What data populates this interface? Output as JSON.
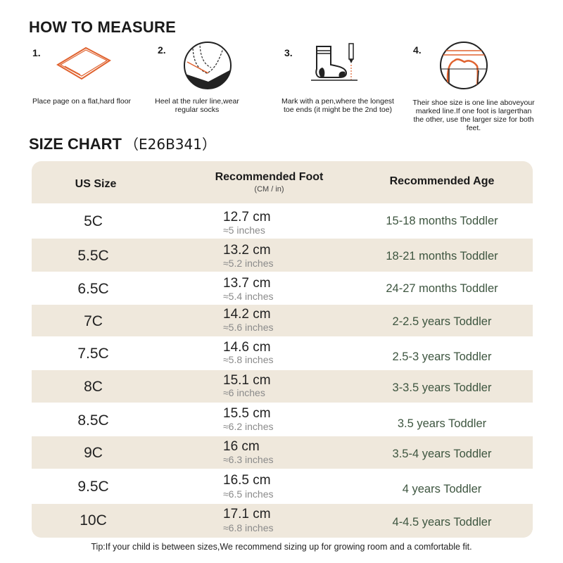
{
  "measure": {
    "title": "HOW TO MEASURE",
    "steps": [
      {
        "num": "1.",
        "text": "Place page on a flat,hard floor"
      },
      {
        "num": "2.",
        "text": "Heel at the ruler line,wear regular socks"
      },
      {
        "num": "3.",
        "text": "Mark with a pen,where the longest toe ends (it might be the 2nd toe)"
      },
      {
        "num": "4.",
        "text": "Their shoe size is one line aboveyour marked line.If one foot is largerthan the other, use the larger size for both feet."
      }
    ]
  },
  "chart": {
    "title": "SIZE CHART",
    "code": "（E26B341）",
    "headers": {
      "size": "US Size",
      "foot": "Recommended Foot",
      "foot_sub": "(CM / in)",
      "age": "Recommended Age"
    },
    "rows": [
      {
        "size": "5C",
        "cm": "12.7 cm",
        "inch": "≈5 inches",
        "age": "15-18 months Toddler"
      },
      {
        "size": "5.5C",
        "cm": "13.2 cm",
        "inch": "≈5.2 inches",
        "age": "18-21 months Toddler"
      },
      {
        "size": "6.5C",
        "cm": "13.7 cm",
        "inch": "≈5.4 inches",
        "age": "24-27 months Toddler"
      },
      {
        "size": "7C",
        "cm": "14.2 cm",
        "inch": "≈5.6 inches",
        "age": "2-2.5 years Toddler"
      },
      {
        "size": "7.5C",
        "cm": "14.6 cm",
        "inch": "≈5.8 inches",
        "age": "2.5-3 years Toddler"
      },
      {
        "size": "8C",
        "cm": "15.1 cm",
        "inch": "≈6 inches",
        "age": "3-3.5 years Toddler"
      },
      {
        "size": "8.5C",
        "cm": "15.5 cm",
        "inch": "≈6.2 inches",
        "age": "3.5 years Toddler"
      },
      {
        "size": "9C",
        "cm": "16 cm",
        "inch": "≈6.3 inches",
        "age": "3.5-4 years Toddler"
      },
      {
        "size": "9.5C",
        "cm": "16.5 cm",
        "inch": "≈6.5 inches",
        "age": "4 years Toddler"
      },
      {
        "size": "10C",
        "cm": "17.1 cm",
        "inch": "≈6.8 inches",
        "age": "4-4.5 years Toddler"
      }
    ]
  },
  "tip": "Tip:If your child is between sizes,We recommend sizing up for growing room and a comfortable fit."
}
